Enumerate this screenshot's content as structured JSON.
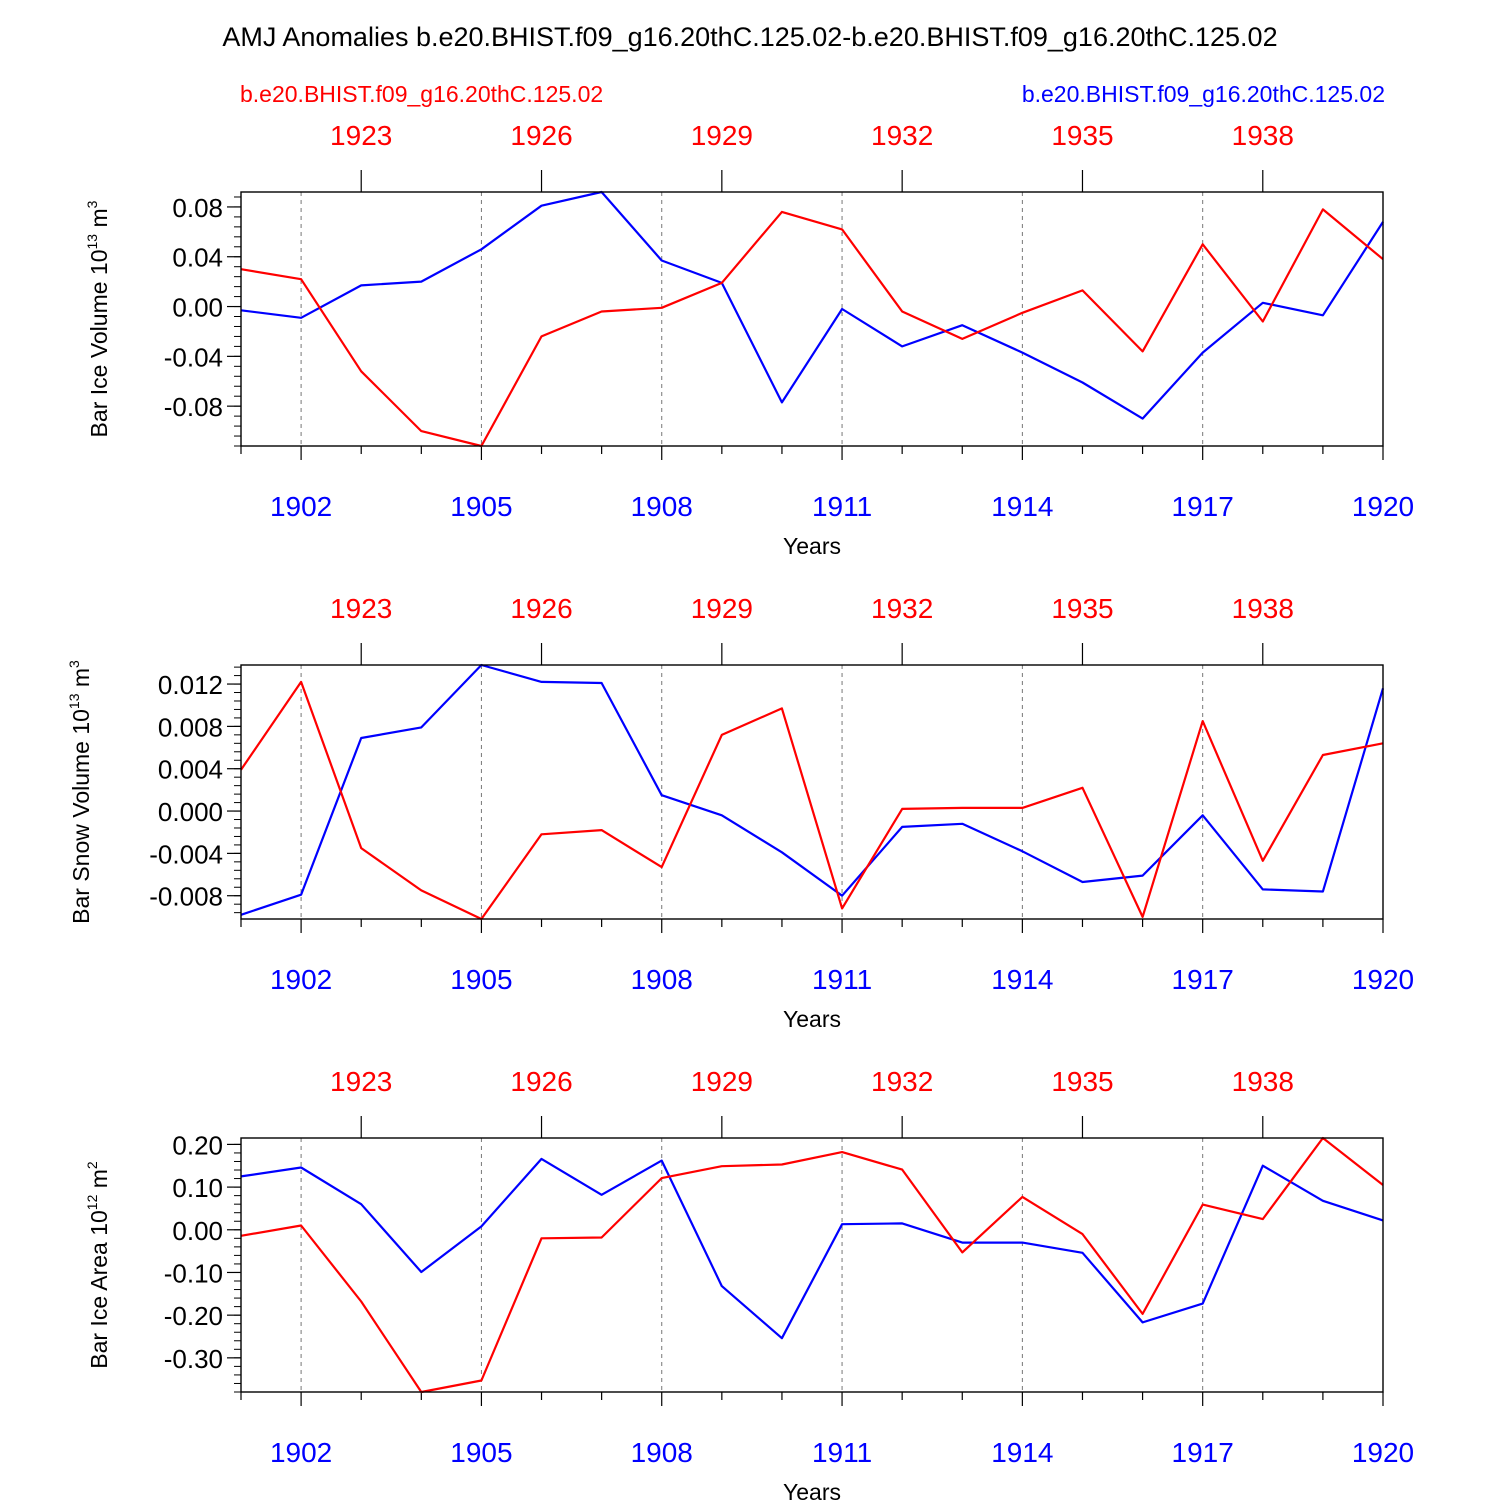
{
  "title": "AMJ Anomalies b.e20.BHIST.f09_g16.20thC.125.02-b.e20.BHIST.f09_g16.20thC.125.02",
  "legend": {
    "left_label": "b.e20.BHIST.f09_g16.20thC.125.02",
    "right_label": "b.e20.BHIST.f09_g16.20thC.125.02",
    "left_color": "#ff0000",
    "right_color": "#0000ff"
  },
  "chart_data": [
    {
      "type": "line",
      "ylabel_main": "Bar Ice Volume 10",
      "ylabel_exp": "13",
      "ylabel_unit": " m",
      "ylabel_unit_exp": "3",
      "xlabel": "Years",
      "xlim": [
        1901,
        1920
      ],
      "ylim": [
        -0.112,
        0.092
      ],
      "yticks": [
        -0.08,
        -0.04,
        0.0,
        0.04,
        0.08
      ],
      "ytick_labels": [
        "-0.08",
        "-0.04",
        "0.00",
        "0.04",
        "0.08"
      ],
      "yminor_step": 0.008,
      "bottom_ticks": [
        1902,
        1905,
        1908,
        1911,
        1914,
        1917,
        1920
      ],
      "bottom_tick_labels": [
        "1902",
        "1905",
        "1908",
        "1911",
        "1914",
        "1917",
        "1920"
      ],
      "top_ticks": [
        1902,
        1905,
        1908,
        1911,
        1914,
        1917
      ],
      "top_tick_labels": [
        "1923",
        "1926",
        "1929",
        "1932",
        "1935",
        "1938"
      ],
      "x": [
        1901,
        1902,
        1903,
        1904,
        1905,
        1906,
        1907,
        1908,
        1909,
        1910,
        1911,
        1912,
        1913,
        1914,
        1915,
        1916,
        1917,
        1918,
        1919,
        1920
      ],
      "series": [
        {
          "name": "b.e20.BHIST.f09_g16.20thC.125.02 (20thC)",
          "color": "#0000ff",
          "values": [
            -0.003,
            -0.009,
            0.017,
            0.02,
            0.046,
            0.081,
            0.092,
            0.037,
            0.019,
            -0.077,
            -0.002,
            -0.032,
            -0.015,
            -0.037,
            -0.061,
            -0.09,
            -0.037,
            0.003,
            -0.007,
            0.068
          ]
        },
        {
          "name": "b.e20.BHIST.f09_g16.20thC.125.02 (1922+)",
          "color": "#ff0000",
          "values": [
            0.03,
            0.022,
            -0.052,
            -0.1,
            -0.112,
            -0.024,
            -0.004,
            -0.001,
            0.019,
            0.076,
            0.062,
            -0.004,
            -0.026,
            -0.005,
            0.013,
            -0.036,
            0.05,
            -0.012,
            0.078,
            0.038
          ]
        }
      ]
    },
    {
      "type": "line",
      "ylabel_main": "Bar Snow Volume 10",
      "ylabel_exp": "13",
      "ylabel_unit": " m",
      "ylabel_unit_exp": "3",
      "xlabel": "Years",
      "xlim": [
        1901,
        1920
      ],
      "ylim": [
        -0.0102,
        0.0138
      ],
      "yticks": [
        -0.008,
        -0.004,
        0.0,
        0.004,
        0.008,
        0.012
      ],
      "ytick_labels": [
        "-0.008",
        "-0.004",
        "0.000",
        "0.004",
        "0.008",
        "0.012"
      ],
      "yminor_step": 0.0008,
      "bottom_ticks": [
        1902,
        1905,
        1908,
        1911,
        1914,
        1917,
        1920
      ],
      "bottom_tick_labels": [
        "1902",
        "1905",
        "1908",
        "1911",
        "1914",
        "1917",
        "1920"
      ],
      "top_ticks": [
        1902,
        1905,
        1908,
        1911,
        1914,
        1917
      ],
      "top_tick_labels": [
        "1923",
        "1926",
        "1929",
        "1932",
        "1935",
        "1938"
      ],
      "x": [
        1901,
        1902,
        1903,
        1904,
        1905,
        1906,
        1907,
        1908,
        1909,
        1910,
        1911,
        1912,
        1913,
        1914,
        1915,
        1916,
        1917,
        1918,
        1919,
        1920
      ],
      "series": [
        {
          "name": "b.e20.BHIST.f09_g16.20thC.125.02 (20thC)",
          "color": "#0000ff",
          "values": [
            -0.0098,
            -0.0079,
            0.0069,
            0.0079,
            0.0138,
            0.0122,
            0.0121,
            0.0015,
            -0.0004,
            -0.0039,
            -0.008,
            -0.0015,
            -0.0012,
            -0.0038,
            -0.0067,
            -0.0061,
            -0.0004,
            -0.0074,
            -0.0076,
            0.0116
          ]
        },
        {
          "name": "b.e20.BHIST.f09_g16.20thC.125.02 (1922+)",
          "color": "#ff0000",
          "values": [
            0.0039,
            0.0122,
            -0.0035,
            -0.0075,
            -0.0102,
            -0.0022,
            -0.0018,
            -0.0053,
            0.0072,
            0.0097,
            -0.0092,
            0.0002,
            0.0003,
            0.0003,
            0.0022,
            -0.01,
            0.0085,
            -0.0047,
            0.0053,
            0.0064
          ]
        }
      ]
    },
    {
      "type": "line",
      "ylabel_main": "Bar Ice Area 10",
      "ylabel_exp": "12",
      "ylabel_unit": " m",
      "ylabel_unit_exp": "2",
      "xlabel": "Years",
      "xlim": [
        1901,
        1920
      ],
      "ylim": [
        -0.38,
        0.215
      ],
      "yticks": [
        -0.3,
        -0.2,
        -0.1,
        0.0,
        0.1,
        0.2
      ],
      "ytick_labels": [
        "-0.30",
        "-0.20",
        "-0.10",
        "0.00",
        "0.10",
        "0.20"
      ],
      "yminor_step": 0.02,
      "bottom_ticks": [
        1902,
        1905,
        1908,
        1911,
        1914,
        1917,
        1920
      ],
      "bottom_tick_labels": [
        "1902",
        "1905",
        "1908",
        "1911",
        "1914",
        "1917",
        "1920"
      ],
      "top_ticks": [
        1902,
        1905,
        1908,
        1911,
        1914,
        1917
      ],
      "top_tick_labels": [
        "1923",
        "1926",
        "1929",
        "1932",
        "1935",
        "1938"
      ],
      "x": [
        1901,
        1902,
        1903,
        1904,
        1905,
        1906,
        1907,
        1908,
        1909,
        1910,
        1911,
        1912,
        1913,
        1914,
        1915,
        1916,
        1917,
        1918,
        1919,
        1920
      ],
      "series": [
        {
          "name": "b.e20.BHIST.f09_g16.20thC.125.02 (20thC)",
          "color": "#0000ff",
          "values": [
            0.125,
            0.146,
            0.06,
            -0.099,
            0.008,
            0.166,
            0.082,
            0.162,
            -0.132,
            -0.254,
            0.013,
            0.015,
            -0.03,
            -0.03,
            -0.054,
            -0.217,
            -0.173,
            0.15,
            0.068,
            0.022
          ]
        },
        {
          "name": "b.e20.BHIST.f09_g16.20thC.125.02 (1922+)",
          "color": "#ff0000",
          "values": [
            -0.014,
            0.01,
            -0.168,
            -0.38,
            -0.353,
            -0.02,
            -0.018,
            0.121,
            0.149,
            0.153,
            0.182,
            0.141,
            -0.053,
            0.077,
            -0.01,
            -0.197,
            0.059,
            0.025,
            0.215,
            0.105
          ]
        }
      ]
    }
  ]
}
